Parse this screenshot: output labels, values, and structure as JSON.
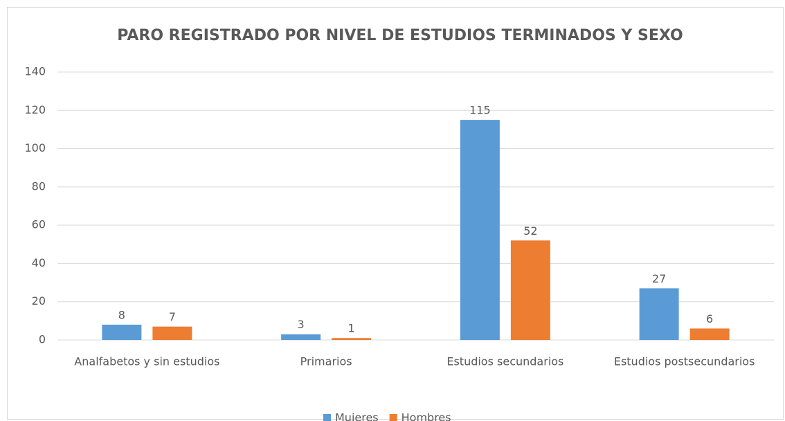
{
  "chart_data": {
    "type": "bar",
    "title": "PARO REGISTRADO POR NIVEL DE ESTUDIOS TERMINADOS Y SEXO",
    "categories": [
      "Analfabetos y sin estudios",
      "Primarios",
      "Estudios secundarios",
      "Estudios postsecundarios"
    ],
    "series": [
      {
        "name": "Mujeres",
        "color": "#5b9bd5",
        "values": [
          8,
          3,
          115,
          27
        ]
      },
      {
        "name": "Hombres",
        "color": "#ed7d31",
        "values": [
          7,
          1,
          52,
          6
        ]
      }
    ],
    "ylim": [
      0,
      140
    ],
    "yticks": [
      0,
      20,
      40,
      60,
      80,
      100,
      120,
      140
    ],
    "grid": true,
    "legend": "bottom"
  }
}
